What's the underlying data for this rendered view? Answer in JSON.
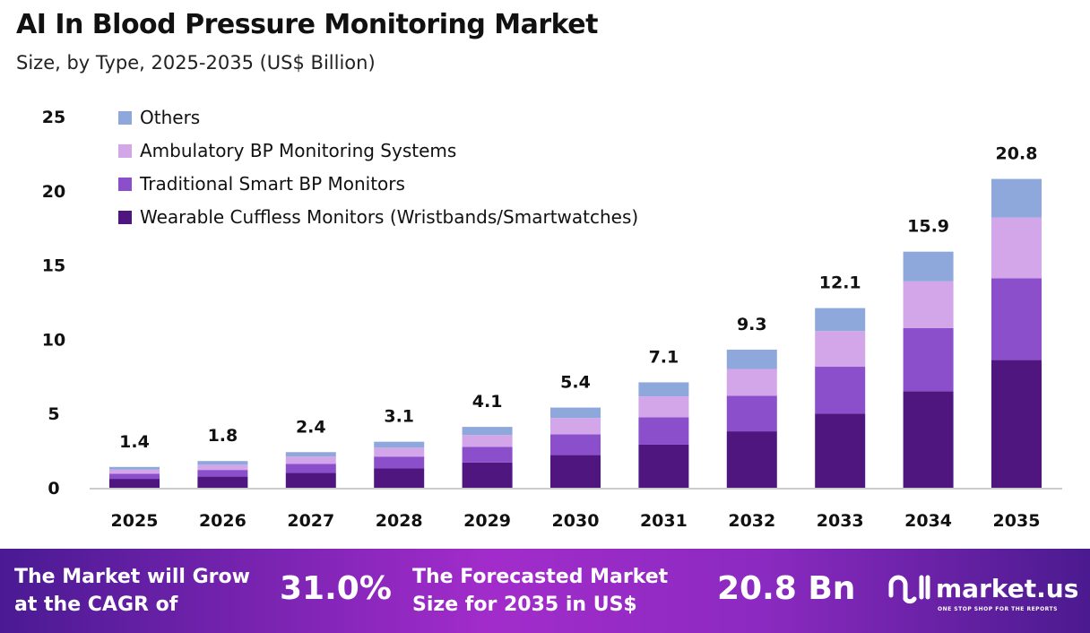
{
  "header": {
    "title": "AI In Blood Pressure Monitoring Market",
    "subtitle": "Size, by Type, 2025-2035 (US$ Billion)"
  },
  "chart_data": {
    "type": "bar",
    "stacked": true,
    "categories": [
      "2025",
      "2026",
      "2027",
      "2028",
      "2029",
      "2030",
      "2031",
      "2032",
      "2033",
      "2034",
      "2035"
    ],
    "series": [
      {
        "name": "Wearable Cuffless Monitors (Wristbands/Smartwatches)",
        "color": "#4f1680",
        "values": [
          0.6,
          0.75,
          1.0,
          1.3,
          1.7,
          2.2,
          2.9,
          3.8,
          5.0,
          6.5,
          8.6
        ]
      },
      {
        "name": "Traditional Smart BP Monitors",
        "color": "#8b4fcc",
        "values": [
          0.35,
          0.45,
          0.6,
          0.8,
          1.05,
          1.4,
          1.85,
          2.4,
          3.15,
          4.25,
          5.5
        ]
      },
      {
        "name": "Ambulatory BP Monitoring Systems",
        "color": "#d3a6ea",
        "values": [
          0.27,
          0.35,
          0.5,
          0.6,
          0.8,
          1.1,
          1.4,
          1.8,
          2.4,
          3.15,
          4.1
        ]
      },
      {
        "name": "Others",
        "color": "#8fa8dc",
        "values": [
          0.18,
          0.25,
          0.3,
          0.4,
          0.55,
          0.7,
          0.95,
          1.3,
          1.55,
          2.0,
          2.6
        ]
      }
    ],
    "totals": [
      "1.4",
      "1.8",
      "2.4",
      "3.1",
      "4.1",
      "5.4",
      "7.1",
      "9.3",
      "12.1",
      "15.9",
      "20.8"
    ],
    "yticks": [
      "0",
      "5",
      "10",
      "15",
      "20",
      "25"
    ],
    "ylim": [
      0,
      25
    ],
    "grid": false,
    "legend": "top-left"
  },
  "footer": {
    "cagr_label_1": "The Market will Grow",
    "cagr_label_2": "at the CAGR of",
    "cagr_value": "31.0%",
    "size_label_1": "The Forecasted Market",
    "size_label_2": "Size for 2035 in US$",
    "size_value": "20.8 Bn",
    "logo_name": "market.us",
    "logo_tagline": "ONE STOP SHOP FOR THE REPORTS"
  }
}
